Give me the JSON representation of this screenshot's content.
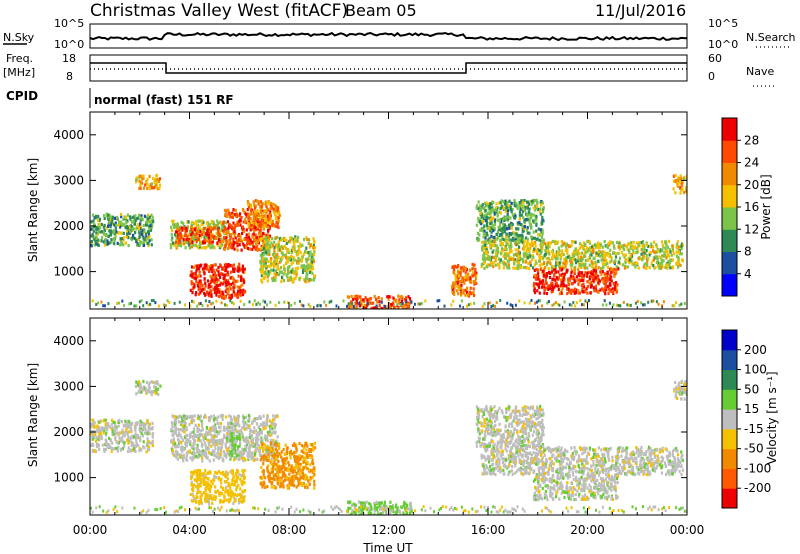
{
  "header": {
    "station": "Christmas Valley West (fitACF)",
    "beam": "Beam 05",
    "date": "11/Jul/2016"
  },
  "noise_panel": {
    "left_label": "N.Sky",
    "right_label": "N.Search",
    "left_ticks": [
      "10^5",
      "10^0"
    ],
    "right_ticks": [
      "10^5",
      "10^0"
    ]
  },
  "freq_panel": {
    "left_label_1": "Freq.",
    "left_label_2": "[MHz]",
    "right_label": "Nave",
    "left_ticks": [
      "18",
      "8"
    ],
    "right_ticks": [
      "60",
      "0"
    ],
    "cpid_label": "CPID"
  },
  "cpid_text": "normal (fast) 151 RF",
  "colors": {
    "power": [
      "#0000ff",
      "#1c4fa0",
      "#2e8a55",
      "#7cc44a",
      "#f5c000",
      "#f08a00",
      "#ff4a00",
      "#ee0000"
    ],
    "velocity": [
      "#ee0000",
      "#ff5a00",
      "#f28a00",
      "#f5c000",
      "#bebebe",
      "#66cc33",
      "#2e8a55",
      "#1c4fa0",
      "#0000cc"
    ]
  },
  "power_colorbar": {
    "label": "Power [dB]",
    "ticks": [
      "28",
      "24",
      "20",
      "16",
      "12",
      "8",
      "4"
    ]
  },
  "velocity_colorbar": {
    "label": "Velocity [m s⁻¹]",
    "ticks": [
      "200",
      "100",
      "50",
      "15",
      "-15",
      "-50",
      "-100",
      "-200"
    ]
  },
  "chart_data": [
    {
      "type": "heatmap",
      "name": "power",
      "title": "",
      "xlabel": "",
      "ylabel": "Slant Range [km]",
      "xlim": [
        0,
        24
      ],
      "ylim": [
        180,
        4500
      ],
      "y_ticks": [
        1000,
        2000,
        3000,
        4000
      ],
      "colorbar": {
        "label": "Power [dB]",
        "ticks": [
          4,
          8,
          12,
          16,
          20,
          24,
          28
        ]
      },
      "regions": [
        {
          "t0": 0.0,
          "t1": 2.5,
          "r0": 1600,
          "r1": 2300,
          "power": 12
        },
        {
          "t0": 1.8,
          "t1": 2.8,
          "r0": 2850,
          "r1": 3150,
          "power": 20
        },
        {
          "t0": 3.2,
          "t1": 5.5,
          "r0": 1550,
          "r1": 2150,
          "power": 16
        },
        {
          "t0": 3.4,
          "t1": 5.2,
          "r0": 1650,
          "r1": 2000,
          "power": 26
        },
        {
          "t0": 4.0,
          "t1": 6.2,
          "r0": 450,
          "r1": 1200,
          "power": 28
        },
        {
          "t0": 5.3,
          "t1": 7.2,
          "r0": 1500,
          "r1": 2400,
          "power": 26
        },
        {
          "t0": 6.3,
          "t1": 7.6,
          "r0": 2000,
          "r1": 2600,
          "power": 22
        },
        {
          "t0": 6.8,
          "t1": 9.0,
          "r0": 800,
          "r1": 1800,
          "power": 16
        },
        {
          "t0": 10.3,
          "t1": 12.9,
          "r0": 200,
          "r1": 500,
          "power": 26
        },
        {
          "t0": 14.5,
          "t1": 15.5,
          "r0": 500,
          "r1": 1200,
          "power": 24
        },
        {
          "t0": 15.5,
          "t1": 18.2,
          "r0": 1700,
          "r1": 2600,
          "power": 12
        },
        {
          "t0": 15.7,
          "t1": 23.8,
          "r0": 1100,
          "r1": 1700,
          "power": 16
        },
        {
          "t0": 17.8,
          "t1": 21.2,
          "r0": 550,
          "r1": 1100,
          "power": 28
        },
        {
          "t0": 23.4,
          "t1": 24.0,
          "r0": 2750,
          "r1": 3150,
          "power": 20
        }
      ]
    },
    {
      "type": "heatmap",
      "name": "velocity",
      "title": "",
      "xlabel": "Time UT",
      "ylabel": "Slant Range [km]",
      "xlim": [
        0,
        24
      ],
      "ylim": [
        180,
        4500
      ],
      "x_ticks": [
        "00:00",
        "04:00",
        "08:00",
        "12:00",
        "16:00",
        "20:00",
        "00:00"
      ],
      "y_ticks": [
        1000,
        2000,
        3000,
        4000
      ],
      "colorbar": {
        "label": "Velocity [m s⁻¹]",
        "ticks": [
          -200,
          -100,
          -50,
          -15,
          15,
          50,
          100,
          200
        ]
      },
      "regions": [
        {
          "t0": 0.0,
          "t1": 2.5,
          "r0": 1600,
          "r1": 2300,
          "velocity": 0
        },
        {
          "t0": 1.8,
          "t1": 2.8,
          "r0": 2850,
          "r1": 3150,
          "velocity": 0
        },
        {
          "t0": 3.2,
          "t1": 7.5,
          "r0": 1400,
          "r1": 2400,
          "velocity": 0
        },
        {
          "t0": 5.6,
          "t1": 6.0,
          "r0": 1500,
          "r1": 2000,
          "velocity": 30
        },
        {
          "t0": 4.0,
          "t1": 6.2,
          "r0": 450,
          "r1": 1200,
          "velocity": -30
        },
        {
          "t0": 6.8,
          "t1": 9.0,
          "r0": 800,
          "r1": 1800,
          "velocity": -60
        },
        {
          "t0": 10.3,
          "t1": 12.9,
          "r0": 200,
          "r1": 500,
          "velocity": 25
        },
        {
          "t0": 15.5,
          "t1": 18.2,
          "r0": 1700,
          "r1": 2600,
          "velocity": 0
        },
        {
          "t0": 15.7,
          "t1": 23.8,
          "r0": 1100,
          "r1": 1700,
          "velocity": 0
        },
        {
          "t0": 17.8,
          "t1": 21.2,
          "r0": 550,
          "r1": 1100,
          "velocity": 0
        },
        {
          "t0": 23.4,
          "t1": 24.0,
          "r0": 2750,
          "r1": 3150,
          "velocity": 0
        }
      ]
    }
  ]
}
